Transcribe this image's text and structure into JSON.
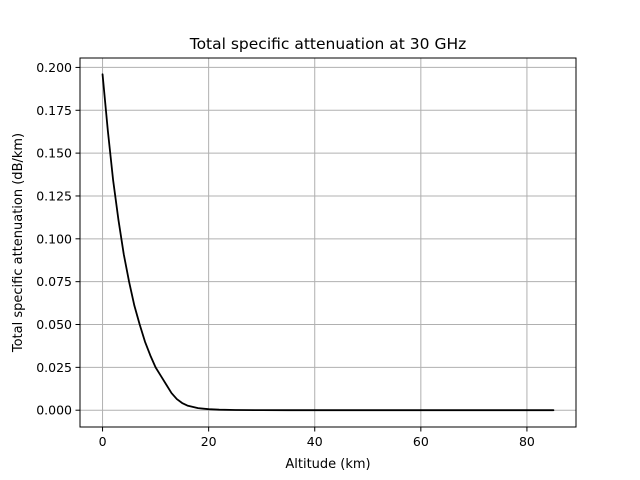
{
  "chart_data": {
    "type": "line",
    "title": "Total specific attenuation at 30 GHz",
    "xlabel": "Altitude (km)",
    "ylabel": "Total specific attenuation (dB/km)",
    "xlim": [
      -4.25,
      89.25
    ],
    "ylim": [
      -0.0098,
      0.2055
    ],
    "xticks": [
      0,
      20,
      40,
      60,
      80
    ],
    "xtick_labels": [
      "0",
      "20",
      "40",
      "60",
      "80"
    ],
    "yticks": [
      0.0,
      0.025,
      0.05,
      0.075,
      0.1,
      0.125,
      0.15,
      0.175,
      0.2
    ],
    "ytick_labels": [
      "0.000",
      "0.025",
      "0.050",
      "0.075",
      "0.100",
      "0.125",
      "0.150",
      "0.175",
      "0.200"
    ],
    "grid": true,
    "series": [
      {
        "color": "#000000",
        "x": [
          0,
          1,
          2,
          3,
          4,
          5,
          6,
          7,
          8,
          9,
          10,
          11,
          12,
          13,
          14,
          15,
          16,
          18,
          20,
          22,
          25,
          30,
          35,
          40,
          50,
          60,
          70,
          80,
          85
        ],
        "y": [
          0.196,
          0.163,
          0.134,
          0.111,
          0.091,
          0.075,
          0.061,
          0.05,
          0.04,
          0.032,
          0.025,
          0.02,
          0.015,
          0.01,
          0.0065,
          0.0042,
          0.0027,
          0.0012,
          0.0006,
          0.0003,
          0.0001,
          3e-05,
          1e-05,
          0.0,
          0.0,
          0.0,
          0.0,
          0.0,
          0.0
        ]
      }
    ]
  }
}
